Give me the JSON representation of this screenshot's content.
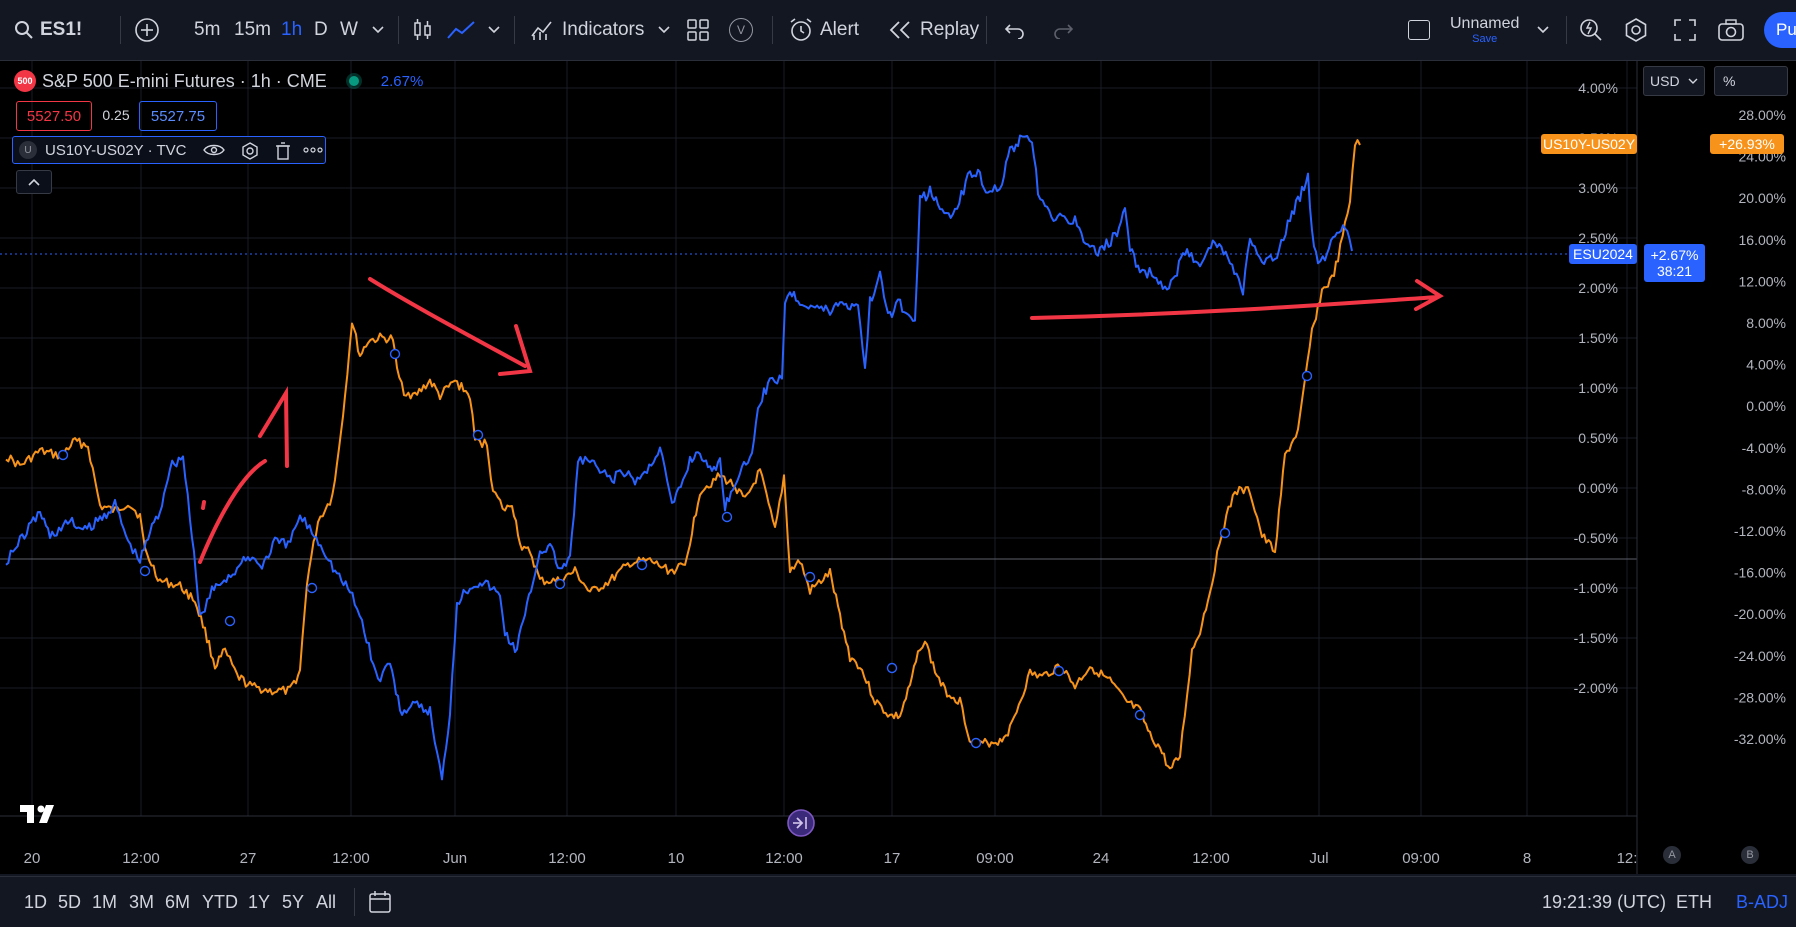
{
  "toolbar": {
    "symbol": "ES1!",
    "intervals": [
      "5m",
      "15m",
      "1h",
      "D",
      "W"
    ],
    "active_interval": "1h",
    "indicators_label": "Indicators",
    "alert_label": "Alert",
    "replay_label": "Replay",
    "layout_name": "Unnamed",
    "layout_save": "Save",
    "publish_label": "Pu",
    "templates_badge": "V"
  },
  "legend": {
    "main_symbol_badge": "500",
    "main_symbol_title": "S&P 500 E-mini Futures · 1h · CME",
    "main_change": "2.67%",
    "bid": "5527.50",
    "spread": "0.25",
    "ask": "5527.75",
    "compare_badge": "U",
    "compare_title": "US10Y-US02Y · TVC"
  },
  "scales": {
    "currency": "USD",
    "mode": "%",
    "left_axis_labels": [
      "4.00%",
      "3.50%",
      "3.00%",
      "2.50%",
      "2.00%",
      "1.50%",
      "1.00%",
      "0.50%",
      "0.00%",
      "-0.50%",
      "-1.00%",
      "-1.50%",
      "-2.00%"
    ],
    "right_axis_labels": [
      "28.00%",
      "24.00%",
      "20.00%",
      "16.00%",
      "12.00%",
      "8.00%",
      "4.00%",
      "0.00%",
      "-4.00%",
      "-8.00%",
      "-12.00%",
      "-16.00%",
      "-20.00%",
      "-24.00%",
      "-28.00%",
      "-32.00%"
    ],
    "compare_tag": "US10Y-US02Y",
    "compare_tag_value": "+26.93%",
    "main_tag": "ESU2024",
    "main_tag_value": "+2.67%",
    "main_tag_countdown": "38:21",
    "time_labels": [
      "20",
      "12:00",
      "27",
      "12:00",
      "Jun",
      "12:00",
      "10",
      "12:00",
      "17",
      "09:00",
      "24",
      "12:00",
      "Jul",
      "09:00",
      "8",
      "12:"
    ],
    "auto_label": "A",
    "log_label": "B"
  },
  "chart_data": {
    "type": "line",
    "x": [
      "20",
      "12:00",
      "27",
      "12:00",
      "Jun",
      "12:00",
      "10",
      "12:00",
      "17",
      "09:00",
      "24",
      "12:00",
      "Jul",
      "09:00",
      "8",
      "12:"
    ],
    "y_left_range": [
      -2.0,
      4.0
    ],
    "y_right_range": [
      -32,
      28
    ],
    "series": [
      {
        "name": "ESU2024",
        "color": "#2962ff",
        "axis": "left",
        "last_value": 2.67
      },
      {
        "name": "US10Y-US02Y",
        "color": "#f7931a",
        "axis": "right",
        "last_value": 26.93
      }
    ]
  },
  "bottom": {
    "ranges": [
      "1D",
      "5D",
      "1M",
      "3M",
      "6M",
      "YTD",
      "1Y",
      "5Y",
      "All"
    ],
    "time": "19:21:39 (UTC)",
    "session": "ETH",
    "adjust": "B-ADJ"
  },
  "colors": {
    "blue": "#2962ff",
    "orange": "#f7931a",
    "red": "#f23645",
    "bg": "#000000",
    "panel": "#131722"
  }
}
